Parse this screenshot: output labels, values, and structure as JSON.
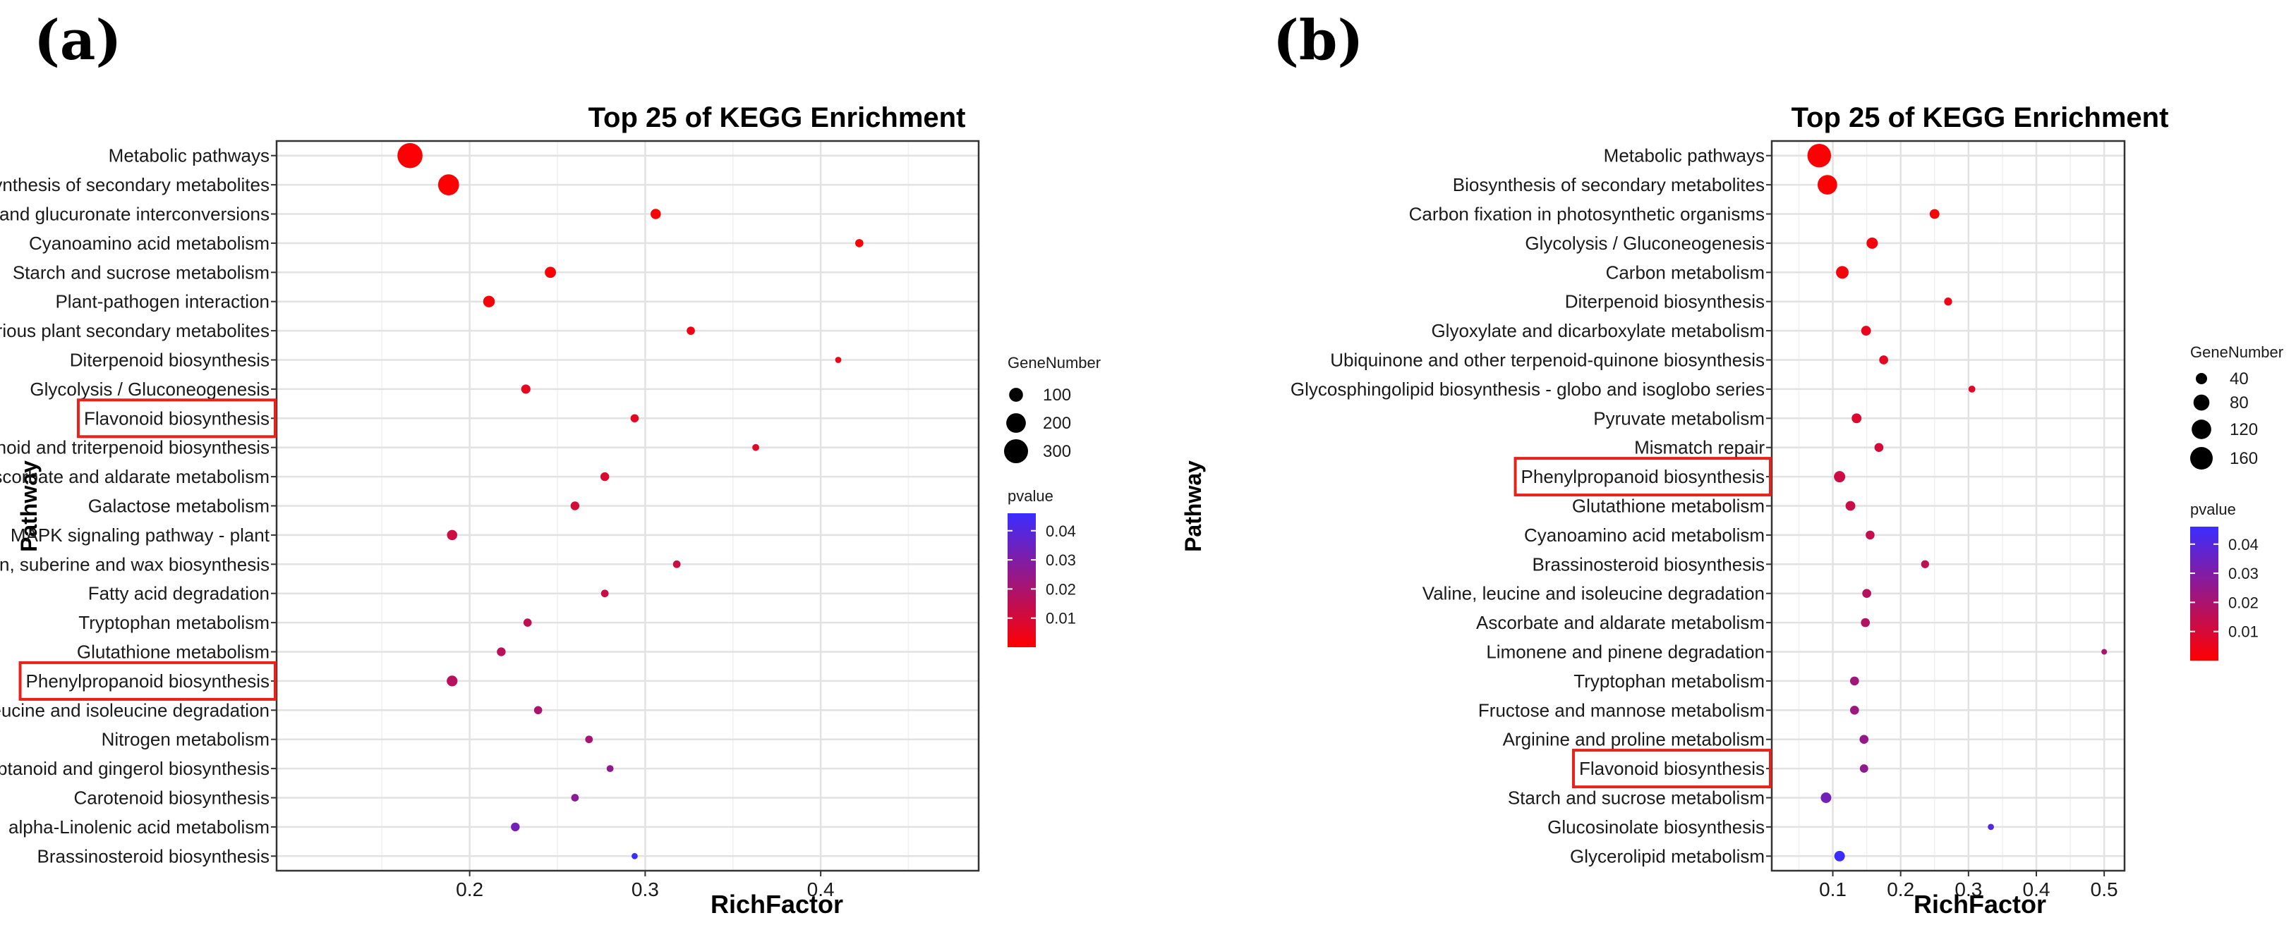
{
  "chart_data": [
    {
      "type": "scatter",
      "panel_label": "(a)",
      "title": "Top 25 of KEGG Enrichment",
      "xlabel": "RichFactor",
      "ylabel": "Pathway",
      "xlim": [
        0.09,
        0.49
      ],
      "xticks": [
        0.2,
        0.3,
        0.4
      ],
      "xtick_labels": [
        "0.2",
        "0.3",
        "0.4"
      ],
      "grid": true,
      "size_legend": {
        "title": "GeneNumber",
        "values": [
          100,
          200,
          300
        ],
        "labels": [
          "100",
          "200",
          "300"
        ]
      },
      "color_legend": {
        "title": "pvalue",
        "ticks": [
          0.04,
          0.03,
          0.02,
          0.01
        ],
        "labels": [
          "0.04",
          "0.03",
          "0.02",
          "0.01"
        ],
        "range": [
          0.0,
          0.046
        ],
        "low_color": "#ff0000",
        "high_color": "#3b2dff"
      },
      "highlighted": [
        "Flavonoid biosynthesis",
        "Phenylpropanoid biosynthesis"
      ],
      "highlight_color": "#e8211b",
      "points": [
        {
          "pathway": "Metabolic pathways",
          "rich_factor": 0.166,
          "gene_number": 330,
          "pvalue": 0.0005
        },
        {
          "pathway": "Biosynthesis of secondary metabolites",
          "rich_factor": 0.188,
          "gene_number": 230,
          "pvalue": 0.0005
        },
        {
          "pathway": "Pentose and glucuronate interconversions",
          "rich_factor": 0.306,
          "gene_number": 55,
          "pvalue": 0.001
        },
        {
          "pathway": "Cyanoamino acid metabolism",
          "rich_factor": 0.422,
          "gene_number": 35,
          "pvalue": 0.001
        },
        {
          "pathway": "Starch and sucrose metabolism",
          "rich_factor": 0.246,
          "gene_number": 65,
          "pvalue": 0.001
        },
        {
          "pathway": "Plant-pathogen interaction",
          "rich_factor": 0.211,
          "gene_number": 70,
          "pvalue": 0.002
        },
        {
          "pathway": "Biosynthesis of various plant secondary metabolites",
          "rich_factor": 0.326,
          "gene_number": 35,
          "pvalue": 0.003
        },
        {
          "pathway": "Diterpenoid biosynthesis",
          "rich_factor": 0.41,
          "gene_number": 20,
          "pvalue": 0.004
        },
        {
          "pathway": "Glycolysis / Gluconeogenesis",
          "rich_factor": 0.232,
          "gene_number": 45,
          "pvalue": 0.006
        },
        {
          "pathway": "Flavonoid biosynthesis",
          "rich_factor": 0.294,
          "gene_number": 35,
          "pvalue": 0.006
        },
        {
          "pathway": "Sesquiterpenoid and triterpenoid biosynthesis",
          "rich_factor": 0.363,
          "gene_number": 25,
          "pvalue": 0.007
        },
        {
          "pathway": "Ascorbate and aldarate metabolism",
          "rich_factor": 0.277,
          "gene_number": 40,
          "pvalue": 0.009
        },
        {
          "pathway": "Galactose metabolism",
          "rich_factor": 0.26,
          "gene_number": 40,
          "pvalue": 0.01
        },
        {
          "pathway": "MAPK signaling pathway - plant",
          "rich_factor": 0.19,
          "gene_number": 55,
          "pvalue": 0.012
        },
        {
          "pathway": "Cutin, suberine and wax biosynthesis",
          "rich_factor": 0.318,
          "gene_number": 30,
          "pvalue": 0.012
        },
        {
          "pathway": "Fatty acid degradation",
          "rich_factor": 0.277,
          "gene_number": 30,
          "pvalue": 0.013
        },
        {
          "pathway": "Tryptophan metabolism",
          "rich_factor": 0.233,
          "gene_number": 35,
          "pvalue": 0.015
        },
        {
          "pathway": "Glutathione metabolism",
          "rich_factor": 0.218,
          "gene_number": 40,
          "pvalue": 0.016
        },
        {
          "pathway": "Phenylpropanoid biosynthesis",
          "rich_factor": 0.19,
          "gene_number": 60,
          "pvalue": 0.017
        },
        {
          "pathway": "Valine, leucine and isoleucine degradation",
          "rich_factor": 0.239,
          "gene_number": 35,
          "pvalue": 0.02
        },
        {
          "pathway": "Nitrogen metabolism",
          "rich_factor": 0.268,
          "gene_number": 30,
          "pvalue": 0.021
        },
        {
          "pathway": "Stilbenoid, diarylheptanoid and gingerol biosynthesis",
          "rich_factor": 0.28,
          "gene_number": 25,
          "pvalue": 0.026
        },
        {
          "pathway": "Carotenoid biosynthesis",
          "rich_factor": 0.26,
          "gene_number": 30,
          "pvalue": 0.027
        },
        {
          "pathway": "alpha-Linolenic acid metabolism",
          "rich_factor": 0.226,
          "gene_number": 40,
          "pvalue": 0.033
        },
        {
          "pathway": "Brassinosteroid biosynthesis",
          "rich_factor": 0.294,
          "gene_number": 20,
          "pvalue": 0.046
        }
      ]
    },
    {
      "type": "scatter",
      "panel_label": "(b)",
      "title": "Top 25 of KEGG Enrichment",
      "xlabel": "RichFactor",
      "ylabel": "Pathway",
      "xlim": [
        0.01,
        0.53
      ],
      "xticks": [
        0.1,
        0.2,
        0.3,
        0.4,
        0.5
      ],
      "xtick_labels": [
        "0.1",
        "0.2",
        "0.3",
        "0.4",
        "0.5"
      ],
      "grid": true,
      "size_legend": {
        "title": "GeneNumber",
        "values": [
          40,
          80,
          120,
          160
        ],
        "labels": [
          "40",
          "80",
          "120",
          "160"
        ]
      },
      "color_legend": {
        "title": "pvalue",
        "ticks": [
          0.04,
          0.03,
          0.02,
          0.01
        ],
        "labels": [
          "0.04",
          "0.03",
          "0.02",
          "0.01"
        ],
        "range": [
          0.0,
          0.046
        ],
        "low_color": "#ff0000",
        "high_color": "#3b2dff"
      },
      "highlighted": [
        "Phenylpropanoid biosynthesis",
        "Flavonoid biosynthesis"
      ],
      "highlight_color": "#e8211b",
      "points": [
        {
          "pathway": "Metabolic pathways",
          "rich_factor": 0.08,
          "gene_number": 175,
          "pvalue": 0.0005
        },
        {
          "pathway": "Biosynthesis of secondary metabolites",
          "rich_factor": 0.092,
          "gene_number": 120,
          "pvalue": 0.0005
        },
        {
          "pathway": "Carbon fixation in photosynthetic organisms",
          "rich_factor": 0.25,
          "gene_number": 30,
          "pvalue": 0.001
        },
        {
          "pathway": "Glycolysis / Gluconeogenesis",
          "rich_factor": 0.158,
          "gene_number": 40,
          "pvalue": 0.002
        },
        {
          "pathway": "Carbon metabolism",
          "rich_factor": 0.114,
          "gene_number": 50,
          "pvalue": 0.002
        },
        {
          "pathway": "Diterpenoid biosynthesis",
          "rich_factor": 0.27,
          "gene_number": 20,
          "pvalue": 0.004
        },
        {
          "pathway": "Glyoxylate and dicarboxylate metabolism",
          "rich_factor": 0.149,
          "gene_number": 30,
          "pvalue": 0.005
        },
        {
          "pathway": "Ubiquinone and other terpenoid-quinone biosynthesis",
          "rich_factor": 0.175,
          "gene_number": 25,
          "pvalue": 0.006
        },
        {
          "pathway": "Glycosphingolipid biosynthesis - globo and isoglobo series",
          "rich_factor": 0.305,
          "gene_number": 15,
          "pvalue": 0.007
        },
        {
          "pathway": "Pyruvate metabolism",
          "rich_factor": 0.135,
          "gene_number": 30,
          "pvalue": 0.008
        },
        {
          "pathway": "Mismatch repair",
          "rich_factor": 0.168,
          "gene_number": 25,
          "pvalue": 0.01
        },
        {
          "pathway": "Phenylpropanoid biosynthesis",
          "rich_factor": 0.11,
          "gene_number": 40,
          "pvalue": 0.012
        },
        {
          "pathway": "Glutathione metabolism",
          "rich_factor": 0.126,
          "gene_number": 30,
          "pvalue": 0.013
        },
        {
          "pathway": "Cyanoamino acid metabolism",
          "rich_factor": 0.155,
          "gene_number": 25,
          "pvalue": 0.014
        },
        {
          "pathway": "Brassinosteroid biosynthesis",
          "rich_factor": 0.236,
          "gene_number": 20,
          "pvalue": 0.015
        },
        {
          "pathway": "Valine, leucine and isoleucine degradation",
          "rich_factor": 0.15,
          "gene_number": 25,
          "pvalue": 0.017
        },
        {
          "pathway": "Ascorbate and aldarate metabolism",
          "rich_factor": 0.148,
          "gene_number": 25,
          "pvalue": 0.018
        },
        {
          "pathway": "Limonene and pinene degradation",
          "rich_factor": 0.5,
          "gene_number": 10,
          "pvalue": 0.02
        },
        {
          "pathway": "Tryptophan metabolism",
          "rich_factor": 0.132,
          "gene_number": 25,
          "pvalue": 0.022
        },
        {
          "pathway": "Fructose and mannose metabolism",
          "rich_factor": 0.132,
          "gene_number": 25,
          "pvalue": 0.023
        },
        {
          "pathway": "Arginine and proline metabolism",
          "rich_factor": 0.146,
          "gene_number": 25,
          "pvalue": 0.025
        },
        {
          "pathway": "Flavonoid biosynthesis",
          "rich_factor": 0.146,
          "gene_number": 22,
          "pvalue": 0.026
        },
        {
          "pathway": "Starch and sucrose metabolism",
          "rich_factor": 0.09,
          "gene_number": 35,
          "pvalue": 0.033
        },
        {
          "pathway": "Glucosinolate biosynthesis",
          "rich_factor": 0.333,
          "gene_number": 12,
          "pvalue": 0.04
        },
        {
          "pathway": "Glycerolipid metabolism",
          "rich_factor": 0.11,
          "gene_number": 35,
          "pvalue": 0.046
        }
      ]
    }
  ]
}
